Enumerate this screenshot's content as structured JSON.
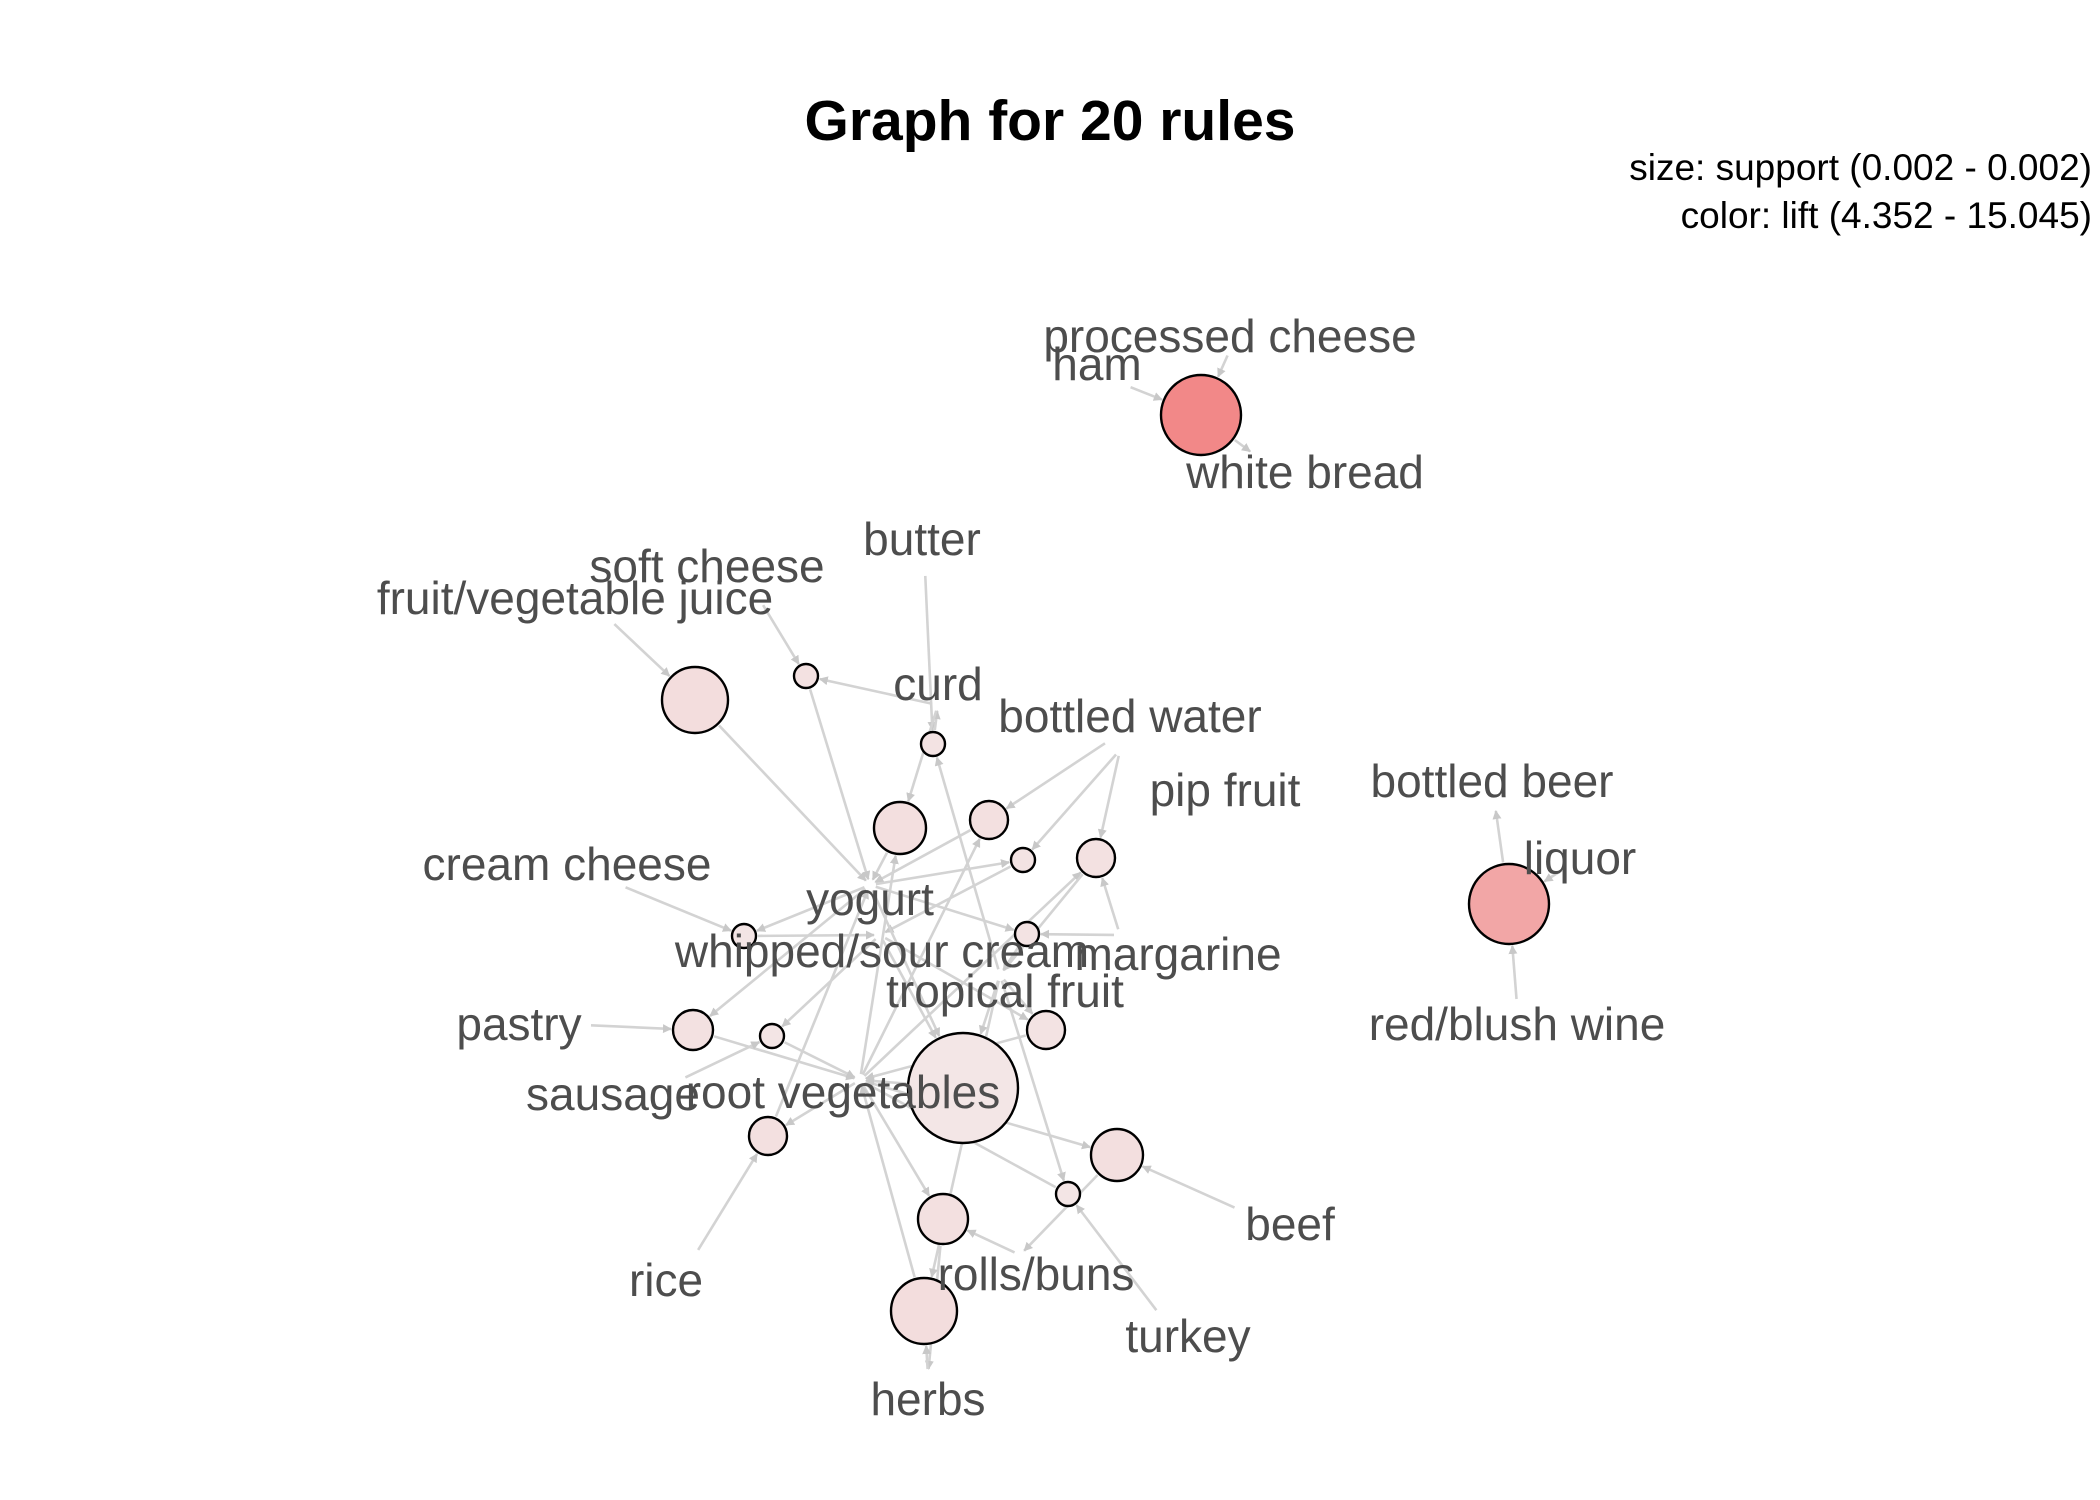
{
  "title": "Graph for 20 rules",
  "legend": {
    "size": "size: support (0.002 - 0.002)",
    "color": "color: lift (4.352 - 15.045)"
  },
  "colors": {
    "edge": "#d3d3d3",
    "label": "#4d4d4d",
    "node_stroke": "#000000",
    "lift_low": "#f3e6e6",
    "lift_high": "#f28888"
  },
  "items": [
    "processed cheese",
    "ham",
    "white bread",
    "butter",
    "soft cheese",
    "fruit/vegetable juice",
    "curd",
    "bottled water",
    "pip fruit",
    "bottled beer",
    "liquor",
    "cream cheese",
    "yogurt",
    "whipped/sour cream",
    "margarine",
    "tropical fruit",
    "red/blush wine",
    "pastry",
    "sausage",
    "root vegetables",
    "beef",
    "rice",
    "rolls/buns",
    "turkey",
    "herbs"
  ],
  "rules": [
    {
      "id": "r1",
      "lhs": [
        "ham",
        "processed cheese"
      ],
      "rhs": "white bread",
      "lift": 15.045
    },
    {
      "id": "r2",
      "lhs": [
        "liquor",
        "red/blush wine"
      ],
      "rhs": "bottled beer",
      "lift": 11.0
    },
    {
      "id": "r3",
      "lhs": [
        "fruit/vegetable juice"
      ],
      "rhs": "yogurt",
      "lift": 4.9
    },
    {
      "id": "r4",
      "lhs": [
        "soft cheese",
        "curd"
      ],
      "rhs": "yogurt",
      "lift": 4.6
    },
    {
      "id": "r5",
      "lhs": [
        "butter",
        "tropical fruit"
      ],
      "rhs": "curd",
      "lift": 4.5
    },
    {
      "id": "r6",
      "lhs": [
        "curd",
        "root vegetables"
      ],
      "rhs": "yogurt",
      "lift": 4.8
    },
    {
      "id": "r7",
      "lhs": [
        "bottled water",
        "root vegetables"
      ],
      "rhs": "yogurt",
      "lift": 4.7
    },
    {
      "id": "r8",
      "lhs": [
        "pip fruit",
        "yogurt"
      ],
      "rhs": "whipped/sour cream",
      "lift": 4.5
    },
    {
      "id": "r9",
      "lhs": [
        "pip fruit",
        "margarine",
        "root vegetables"
      ],
      "rhs": "tropical fruit",
      "lift": 4.6
    },
    {
      "id": "r10",
      "lhs": [
        "cream cheese",
        "yogurt"
      ],
      "rhs": "whipped/sour cream",
      "lift": 4.4
    },
    {
      "id": "r11",
      "lhs": [
        "margarine",
        "yogurt"
      ],
      "rhs": "tropical fruit",
      "lift": 4.5
    },
    {
      "id": "r12",
      "lhs": [
        "pastry",
        "yogurt"
      ],
      "rhs": "root vegetables",
      "lift": 4.6
    },
    {
      "id": "r13",
      "lhs": [
        "sausage",
        "whipped/sour cream"
      ],
      "rhs": "root vegetables",
      "lift": 4.4
    },
    {
      "id": "r14",
      "lhs": [
        "tropical fruit",
        "whipped/sour cream"
      ],
      "rhs": "root vegetables",
      "lift": 4.5
    },
    {
      "id": "r15",
      "lhs": [
        "rice",
        "root vegetables"
      ],
      "rhs": "yogurt",
      "lift": 4.7
    },
    {
      "id": "r16",
      "lhs": [
        "beef",
        "root vegetables"
      ],
      "rhs": "rolls/buns",
      "lift": 4.8
    },
    {
      "id": "r17",
      "lhs": [
        "turkey",
        "tropical fruit"
      ],
      "rhs": "root vegetables",
      "lift": 4.4
    },
    {
      "id": "r18",
      "lhs": [
        "rolls/buns",
        "root vegetables"
      ],
      "rhs": "herbs",
      "lift": 4.7
    },
    {
      "id": "r19",
      "lhs": [
        "herbs",
        "tropical fruit"
      ],
      "rhs": "root vegetables",
      "lift": 4.9
    },
    {
      "id": "r20",
      "lhs": [
        "yogurt",
        "whipped/sour cream",
        "tropical fruit"
      ],
      "rhs": "root vegetables",
      "lift": 4.352
    }
  ]
}
